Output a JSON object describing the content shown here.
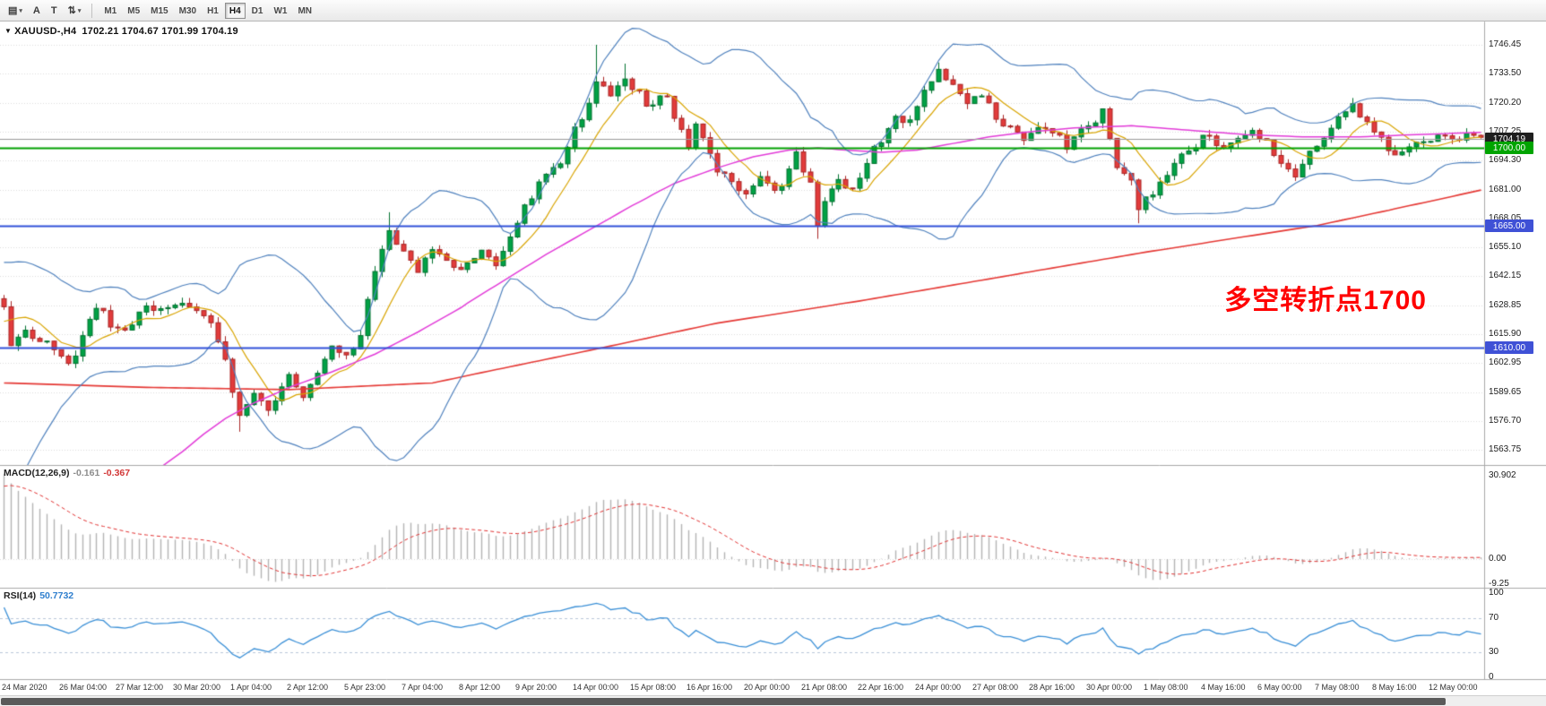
{
  "toolbar": {
    "menu_glyph": "▤",
    "caret": "▾",
    "font_tool_label": "A",
    "text_tool_label": "T",
    "symbols_glyph": "⇅",
    "timeframes": [
      "M1",
      "M5",
      "M15",
      "M30",
      "H1",
      "H4",
      "D1",
      "W1",
      "MN"
    ],
    "active_timeframe": "H4"
  },
  "chart": {
    "title": {
      "marker": "▼",
      "symbol": "XAUUSD-,H4",
      "ohlc": "1702.21 1704.67 1701.99 1704.19"
    },
    "annotation": {
      "text": "多空转折点1700",
      "color": "#ff0000"
    },
    "badges": [
      {
        "label": "1704.19",
        "value": 1704.19,
        "bg": "#1f1f1f"
      },
      {
        "label": "1700.00",
        "value": 1700.0,
        "bg": "#00a400"
      },
      {
        "label": "1665.00",
        "value": 1665.0,
        "bg": "#3f51d6"
      },
      {
        "label": "1610.00",
        "value": 1610.0,
        "bg": "#3f51d6"
      }
    ]
  },
  "macd": {
    "label": "MACD(12,26,9)",
    "value_main": "-0.161",
    "value_signal": "-0.367",
    "axis_labels": [
      "30.902",
      "0.00",
      "-9.25"
    ],
    "axis_values": [
      30.902,
      0,
      -9.25
    ]
  },
  "rsi": {
    "label": "RSI(14)",
    "value": "50.7732",
    "axis_values": [
      100,
      70,
      30,
      0
    ],
    "levels": [
      70,
      30
    ]
  },
  "dates": [
    "24 Mar 2020",
    "26 Mar 04:00",
    "27 Mar 12:00",
    "30 Mar 20:00",
    "1 Apr 04:00",
    "2 Apr 12:00",
    "5 Apr 23:00",
    "7 Apr 04:00",
    "8 Apr 12:00",
    "9 Apr 20:00",
    "14 Apr 00:00",
    "15 Apr 08:00",
    "16 Apr 16:00",
    "20 Apr 00:00",
    "21 Apr 08:00",
    "22 Apr 16:00",
    "24 Apr 00:00",
    "27 Apr 08:00",
    "28 Apr 16:00",
    "30 Apr 00:00",
    "1 May 08:00",
    "4 May 16:00",
    "6 May 00:00",
    "7 May 08:00",
    "8 May 16:00",
    "12 May 00:00"
  ],
  "date_step_bars": 8,
  "colors": {
    "up": "#00a245",
    "up_dark": "#00712f",
    "down": "#e23b3b",
    "down_dark": "#a82525",
    "bollinger": "#4f81bd",
    "ma_gold": "#d8a400",
    "ma_magenta": "#e23bd8",
    "ma_red": "#e53935",
    "rsi": "#3a8fd6",
    "macd_hist": "#b4b4b4",
    "macd_signal": "#e03030",
    "grid": "#dcdcdc",
    "panel_border": "#a8a8a8",
    "price_line": "#9a9a9a",
    "hline_green": "#00a000",
    "hline_blue": "#3050d8",
    "rsi_level": "#b9c6d9"
  },
  "chart_data": {
    "type": "candlestick",
    "symbol": "XAUUSD",
    "timeframe": "H4",
    "bars": 208,
    "pre_bars": 20,
    "seed": 11,
    "noise": 2.0,
    "wick": 2.6,
    "price_ticks": [
      1746.45,
      1733.5,
      1720.2,
      1707.25,
      1694.3,
      1681.0,
      1668.05,
      1655.1,
      1642.15,
      1628.85,
      1615.9,
      1602.95,
      1589.65,
      1576.7,
      1563.75
    ],
    "hlines": [
      {
        "value": 1704.19,
        "color": "#9a9a9a",
        "width": 1
      },
      {
        "value": 1700.0,
        "color": "#00a000",
        "width": 2
      },
      {
        "value": 1665.0,
        "color": "#3050d8",
        "width": 2
      },
      {
        "value": 1610.0,
        "color": "#3050d8",
        "width": 2
      }
    ],
    "close_anchors": [
      [
        -20,
        1552
      ],
      [
        -12,
        1578
      ],
      [
        -6,
        1608
      ],
      [
        -2,
        1636
      ],
      [
        0,
        1630
      ],
      [
        1,
        1612
      ],
      [
        3,
        1617
      ],
      [
        6,
        1611
      ],
      [
        9,
        1601
      ],
      [
        13,
        1629
      ],
      [
        16,
        1617
      ],
      [
        20,
        1627
      ],
      [
        25,
        1631
      ],
      [
        29,
        1620
      ],
      [
        31,
        1603
      ],
      [
        33,
        1578
      ],
      [
        35,
        1591
      ],
      [
        37,
        1582
      ],
      [
        40,
        1596
      ],
      [
        42,
        1586
      ],
      [
        44,
        1599
      ],
      [
        46,
        1611
      ],
      [
        48,
        1605
      ],
      [
        50,
        1617
      ],
      [
        52,
        1644
      ],
      [
        54,
        1661
      ],
      [
        56,
        1654
      ],
      [
        58,
        1644
      ],
      [
        60,
        1654
      ],
      [
        62,
        1648
      ],
      [
        64,
        1644
      ],
      [
        67,
        1654
      ],
      [
        69,
        1648
      ],
      [
        71,
        1661
      ],
      [
        74,
        1679
      ],
      [
        76,
        1687
      ],
      [
        78,
        1694
      ],
      [
        80,
        1709
      ],
      [
        82,
        1719
      ],
      [
        83,
        1729
      ],
      [
        85,
        1724
      ],
      [
        87,
        1731
      ],
      [
        90,
        1720
      ],
      [
        93,
        1724
      ],
      [
        94,
        1714
      ],
      [
        96,
        1701
      ],
      [
        97,
        1709
      ],
      [
        98,
        1704
      ],
      [
        100,
        1690
      ],
      [
        102,
        1684
      ],
      [
        104,
        1680
      ],
      [
        106,
        1686
      ],
      [
        108,
        1679
      ],
      [
        110,
        1690
      ],
      [
        111,
        1697
      ],
      [
        113,
        1684
      ],
      [
        114,
        1666
      ],
      [
        115,
        1677
      ],
      [
        117,
        1686
      ],
      [
        119,
        1680
      ],
      [
        121,
        1694
      ],
      [
        123,
        1704
      ],
      [
        125,
        1714
      ],
      [
        127,
        1711
      ],
      [
        129,
        1724
      ],
      [
        131,
        1734
      ],
      [
        133,
        1727
      ],
      [
        135,
        1719
      ],
      [
        137,
        1724
      ],
      [
        139,
        1714
      ],
      [
        141,
        1709
      ],
      [
        143,
        1704
      ],
      [
        145,
        1711
      ],
      [
        147,
        1707
      ],
      [
        149,
        1701
      ],
      [
        151,
        1709
      ],
      [
        153,
        1711
      ],
      [
        154,
        1716
      ],
      [
        156,
        1691
      ],
      [
        158,
        1684
      ],
      [
        159,
        1673
      ],
      [
        161,
        1680
      ],
      [
        163,
        1689
      ],
      [
        165,
        1697
      ],
      [
        167,
        1701
      ],
      [
        169,
        1707
      ],
      [
        171,
        1699
      ],
      [
        173,
        1705
      ],
      [
        175,
        1709
      ],
      [
        177,
        1702
      ],
      [
        179,
        1694
      ],
      [
        181,
        1688
      ],
      [
        183,
        1697
      ],
      [
        185,
        1704
      ],
      [
        187,
        1714
      ],
      [
        189,
        1720
      ],
      [
        191,
        1711
      ],
      [
        193,
        1704
      ],
      [
        195,
        1697
      ],
      [
        197,
        1700
      ],
      [
        199,
        1703
      ],
      [
        201,
        1706
      ],
      [
        203,
        1703
      ],
      [
        205,
        1705
      ],
      [
        207,
        1704.2
      ]
    ],
    "wick_overrides": [
      {
        "i": 33,
        "low": 1572
      },
      {
        "i": 54,
        "high": 1671
      },
      {
        "i": 83,
        "high": 1746.5
      },
      {
        "i": 87,
        "high": 1738
      },
      {
        "i": 114,
        "low": 1659
      },
      {
        "i": 131,
        "high": 1738.5
      },
      {
        "i": 159,
        "low": 1666
      },
      {
        "i": 189,
        "high": 1722.5
      }
    ],
    "ma_gold_period": 8,
    "bollinger": {
      "period": 20,
      "mult": 2.1
    },
    "ma_red_anchors": [
      [
        0,
        1594
      ],
      [
        20,
        1592
      ],
      [
        40,
        1591
      ],
      [
        60,
        1594
      ],
      [
        84,
        1610
      ],
      [
        100,
        1621
      ],
      [
        120,
        1631
      ],
      [
        140,
        1642
      ],
      [
        160,
        1653
      ],
      [
        184,
        1665
      ],
      [
        200,
        1676
      ],
      [
        207,
        1681
      ]
    ],
    "ma_magenta_anchors": [
      [
        22,
        1556
      ],
      [
        25,
        1563
      ],
      [
        28,
        1571
      ],
      [
        31,
        1578
      ],
      [
        35,
        1585
      ],
      [
        40,
        1592
      ],
      [
        46,
        1599
      ],
      [
        52,
        1607
      ],
      [
        58,
        1617
      ],
      [
        64,
        1628
      ],
      [
        70,
        1640
      ],
      [
        76,
        1652
      ],
      [
        82,
        1663
      ],
      [
        88,
        1674
      ],
      [
        94,
        1684
      ],
      [
        100,
        1691
      ],
      [
        105,
        1696
      ],
      [
        110,
        1699
      ],
      [
        114,
        1700
      ],
      [
        118,
        1699
      ],
      [
        123,
        1698
      ],
      [
        128,
        1699
      ],
      [
        133,
        1702
      ],
      [
        138,
        1705
      ],
      [
        143,
        1707
      ],
      [
        150,
        1709
      ],
      [
        158,
        1710
      ],
      [
        166,
        1708
      ],
      [
        174,
        1706
      ],
      [
        182,
        1705
      ],
      [
        190,
        1705
      ],
      [
        198,
        1706
      ],
      [
        207,
        1707
      ]
    ],
    "macd_seed": {
      "e12_off": -3,
      "e26_off": -37,
      "signal_start": 26
    },
    "rsi_seed": {
      "avg_gain": 1.5,
      "avg_loss": 1.0
    }
  }
}
